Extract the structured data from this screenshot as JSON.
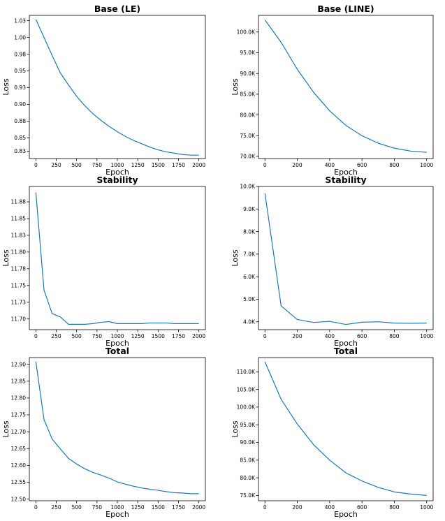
{
  "chart_data": [
    {
      "type": "line",
      "title": "Base (LE)",
      "xlabel": "Epoch",
      "ylabel": "Loss",
      "xlim": [
        -80,
        2080
      ],
      "ylim": [
        0.819,
        1.033
      ],
      "xticks": [
        0,
        250,
        500,
        750,
        1000,
        1250,
        1500,
        1750,
        2000
      ],
      "yticks": [
        0.83,
        0.85,
        0.875,
        0.9,
        0.925,
        0.95,
        0.975,
        1.0,
        1.025
      ],
      "ytick_labels": [
        "0.83",
        "0.85",
        "0.88",
        "0.90",
        "0.93",
        "0.95",
        "0.98",
        "1.00",
        "1.03"
      ],
      "x": [
        0,
        100,
        200,
        300,
        400,
        500,
        600,
        700,
        800,
        900,
        1000,
        1100,
        1200,
        1300,
        1400,
        1500,
        1600,
        1700,
        1800,
        1900,
        2000
      ],
      "y": [
        1.027,
        1.0,
        0.973,
        0.947,
        0.929,
        0.912,
        0.898,
        0.886,
        0.876,
        0.867,
        0.859,
        0.852,
        0.846,
        0.841,
        0.836,
        0.832,
        0.829,
        0.827,
        0.825,
        0.824,
        0.824
      ]
    },
    {
      "type": "line",
      "title": "Base (LINE)",
      "xlabel": "Epoch",
      "ylabel": "Loss",
      "xlim": [
        -40,
        1040
      ],
      "ylim": [
        69500,
        104000
      ],
      "xticks": [
        0,
        200,
        400,
        600,
        800,
        1000
      ],
      "yticks": [
        70000,
        75000,
        80000,
        85000,
        90000,
        95000,
        100000
      ],
      "ytick_labels": [
        "70.0K",
        "75.0K",
        "80.0K",
        "85.0K",
        "90.0K",
        "95.0K",
        "100.0K"
      ],
      "x": [
        0,
        100,
        200,
        300,
        400,
        500,
        600,
        700,
        800,
        900,
        1000
      ],
      "y": [
        102900,
        97500,
        91000,
        85500,
        81000,
        77500,
        75000,
        73200,
        72000,
        71300,
        71000
      ]
    },
    {
      "type": "line",
      "title": "Stability",
      "xlabel": "Epoch",
      "ylabel": "Loss",
      "xlim": [
        -80,
        2080
      ],
      "ylim": [
        11.684,
        11.898
      ],
      "xticks": [
        0,
        250,
        500,
        750,
        1000,
        1250,
        1500,
        1750,
        2000
      ],
      "yticks": [
        11.7,
        11.725,
        11.75,
        11.775,
        11.8,
        11.825,
        11.85,
        11.875
      ],
      "ytick_labels": [
        "11.70",
        "11.73",
        "11.75",
        "11.78",
        "11.80",
        "11.83",
        "11.85",
        "11.88"
      ],
      "x": [
        0,
        100,
        200,
        300,
        400,
        500,
        600,
        700,
        800,
        900,
        1000,
        1100,
        1200,
        1300,
        1400,
        1500,
        1600,
        1700,
        1800,
        1900,
        2000
      ],
      "y": [
        11.889,
        11.743,
        11.708,
        11.703,
        11.692,
        11.692,
        11.692,
        11.693,
        11.695,
        11.696,
        11.693,
        11.693,
        11.693,
        11.693,
        11.694,
        11.694,
        11.694,
        11.693,
        11.693,
        11.693,
        11.693
      ]
    },
    {
      "type": "line",
      "title": "Stability",
      "xlabel": "Epoch",
      "ylabel": "Loss",
      "xlim": [
        -40,
        1040
      ],
      "ylim": [
        3650,
        10000
      ],
      "xticks": [
        0,
        200,
        400,
        600,
        800,
        1000
      ],
      "yticks": [
        4000,
        5000,
        6000,
        7000,
        8000,
        9000,
        10000
      ],
      "ytick_labels": [
        "4.0K",
        "5.0K",
        "6.0K",
        "7.0K",
        "8.0K",
        "9.0K",
        "10.0K"
      ],
      "x": [
        0,
        100,
        200,
        300,
        400,
        500,
        600,
        700,
        800,
        900,
        1000
      ],
      "y": [
        9700,
        4700,
        4100,
        3970,
        4020,
        3880,
        3980,
        4000,
        3940,
        3930,
        3940
      ]
    },
    {
      "type": "line",
      "title": "Total",
      "xlabel": "Epoch",
      "ylabel": "Loss",
      "xlim": [
        -80,
        2080
      ],
      "ylim": [
        12.495,
        12.92
      ],
      "xticks": [
        0,
        250,
        500,
        750,
        1000,
        1250,
        1500,
        1750,
        2000
      ],
      "yticks": [
        12.5,
        12.55,
        12.6,
        12.65,
        12.7,
        12.75,
        12.8,
        12.85,
        12.9
      ],
      "ytick_labels": [
        "12.50",
        "12.55",
        "12.60",
        "12.65",
        "12.70",
        "12.75",
        "12.80",
        "12.85",
        "12.90"
      ],
      "x": [
        0,
        100,
        200,
        300,
        400,
        500,
        600,
        700,
        800,
        900,
        1000,
        1100,
        1200,
        1300,
        1400,
        1500,
        1600,
        1700,
        1800,
        1900,
        2000
      ],
      "y": [
        12.908,
        12.736,
        12.678,
        12.649,
        12.621,
        12.604,
        12.59,
        12.579,
        12.571,
        12.562,
        12.551,
        12.544,
        12.538,
        12.533,
        12.529,
        12.526,
        12.522,
        12.519,
        12.518,
        12.516,
        12.516
      ]
    },
    {
      "type": "line",
      "title": "Total",
      "xlabel": "Epoch",
      "ylabel": "Loss",
      "xlim": [
        -40,
        1040
      ],
      "ylim": [
        73500,
        114000
      ],
      "xticks": [
        0,
        200,
        400,
        600,
        800,
        1000
      ],
      "yticks": [
        75000,
        80000,
        85000,
        90000,
        95000,
        100000,
        105000,
        110000
      ],
      "ytick_labels": [
        "75.0K",
        "80.0K",
        "85.0K",
        "90.0K",
        "95.0K",
        "100.0K",
        "105.0K",
        "110.0K"
      ],
      "x": [
        0,
        100,
        200,
        300,
        400,
        500,
        600,
        700,
        800,
        900,
        1000
      ],
      "y": [
        112800,
        102200,
        95200,
        89400,
        85000,
        81400,
        79100,
        77300,
        76000,
        75400,
        75000
      ]
    }
  ]
}
